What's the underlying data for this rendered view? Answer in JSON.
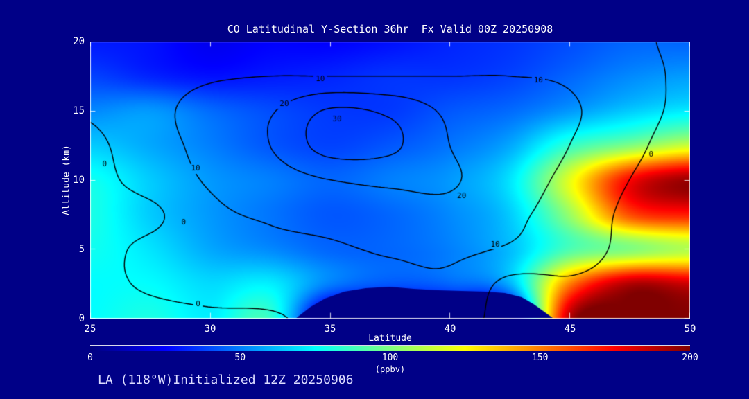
{
  "title": "CO Latitudinal Y-Section 36hr  Fx Valid 00Z 20250908",
  "footer": "LA (118°W)Initialized 12Z 20250906",
  "axes": {
    "x_label": "Latitude",
    "y_label": "Altitude (km)",
    "x_min": 25,
    "x_max": 50,
    "y_min": 0,
    "y_max": 20,
    "x_ticks": [
      25,
      30,
      35,
      40,
      45,
      50
    ],
    "y_ticks": [
      0,
      5,
      10,
      15,
      20
    ]
  },
  "colorbar": {
    "units": "(ppbv)",
    "min": 0,
    "max": 200,
    "ticks": [
      0,
      50,
      100,
      150,
      200
    ]
  },
  "colors": {
    "background": "#000087",
    "text": "#ffffff",
    "contour_line": "#000000",
    "footer_text": "#dcdcff"
  },
  "chart_data": {
    "type": "heatmap",
    "overlay": "contour",
    "value_name": "CO_ppbv",
    "xlim": [
      25,
      50
    ],
    "ylim": [
      0,
      20
    ],
    "lat_points": [
      25,
      27.5,
      30,
      32.5,
      35,
      37.5,
      40,
      42.5,
      45,
      47.5,
      50
    ],
    "alt_points": [
      0,
      2.5,
      5,
      7.5,
      10,
      12.5,
      15,
      17.5,
      20
    ],
    "fill_grid": [
      [
        75,
        80,
        72,
        85,
        5,
        5,
        5,
        5,
        190,
        200,
        200
      ],
      [
        75,
        75,
        68,
        72,
        50,
        42,
        45,
        60,
        150,
        190,
        185
      ],
      [
        78,
        70,
        58,
        52,
        45,
        45,
        50,
        62,
        90,
        100,
        110
      ],
      [
        80,
        65,
        55,
        48,
        42,
        45,
        52,
        65,
        105,
        160,
        170
      ],
      [
        78,
        65,
        55,
        50,
        45,
        50,
        55,
        70,
        120,
        175,
        195
      ],
      [
        65,
        58,
        50,
        42,
        38,
        42,
        48,
        58,
        85,
        100,
        115
      ],
      [
        52,
        55,
        46,
        40,
        36,
        36,
        42,
        46,
        55,
        65,
        72
      ],
      [
        38,
        32,
        28,
        30,
        32,
        35,
        35,
        38,
        45,
        52,
        56
      ],
      [
        30,
        28,
        22,
        25,
        25,
        28,
        32,
        35,
        40,
        45,
        45
      ]
    ],
    "contour_levels": [
      0,
      10,
      20,
      30
    ],
    "contour_grid": [
      [
        -4,
        -2,
        -1,
        -1,
        3,
        3,
        4,
        -3,
        -4,
        -5,
        -5
      ],
      [
        -2,
        1,
        3,
        5,
        6,
        7,
        8,
        -2,
        -1,
        -3,
        -5
      ],
      [
        -3,
        2,
        6,
        8,
        9,
        11,
        12,
        9,
        4,
        -2,
        -6
      ],
      [
        -4,
        -2,
        8,
        11,
        13,
        15,
        17,
        12,
        6,
        -2,
        -8
      ],
      [
        -3,
        4,
        11,
        15,
        20,
        22,
        21,
        14,
        8,
        0,
        -8
      ],
      [
        -2,
        6,
        13,
        20,
        34,
        32,
        20,
        15,
        10,
        3,
        -6
      ],
      [
        1,
        7,
        14,
        19,
        31,
        28,
        18,
        14,
        11,
        5,
        -3
      ],
      [
        3,
        6,
        9,
        10,
        10,
        10,
        10,
        10,
        9,
        4,
        -2
      ],
      [
        2,
        4,
        6,
        8,
        8,
        8,
        7,
        8,
        6,
        2,
        -2
      ]
    ],
    "contour_labels": [
      {
        "level": 0,
        "lat": 25.6,
        "alt": 11.1
      },
      {
        "level": 0,
        "lat": 28.9,
        "alt": 6.9
      },
      {
        "level": 0,
        "lat": 29.5,
        "alt": 1.0
      },
      {
        "level": 0,
        "lat": 48.4,
        "alt": 11.8
      },
      {
        "level": 10,
        "lat": 34.6,
        "alt": 17.3
      },
      {
        "level": 10,
        "lat": 43.7,
        "alt": 17.2
      },
      {
        "level": 10,
        "lat": 29.4,
        "alt": 10.8
      },
      {
        "level": 10,
        "lat": 41.9,
        "alt": 5.3
      },
      {
        "level": 20,
        "lat": 33.1,
        "alt": 15.5
      },
      {
        "level": 20,
        "lat": 40.5,
        "alt": 8.8
      },
      {
        "level": 30,
        "lat": 35.3,
        "alt": 14.4
      }
    ],
    "terrain": [
      [
        33.6,
        0
      ],
      [
        34.2,
        0.8
      ],
      [
        34.8,
        1.4
      ],
      [
        35.6,
        1.9
      ],
      [
        36.5,
        2.15
      ],
      [
        37.5,
        2.25
      ],
      [
        38.5,
        2.1
      ],
      [
        39.5,
        2.0
      ],
      [
        40.5,
        1.95
      ],
      [
        41.5,
        1.9
      ],
      [
        42.3,
        1.8
      ],
      [
        43.0,
        1.5
      ],
      [
        43.5,
        1.0
      ],
      [
        43.9,
        0.5
      ],
      [
        44.3,
        0
      ]
    ]
  }
}
